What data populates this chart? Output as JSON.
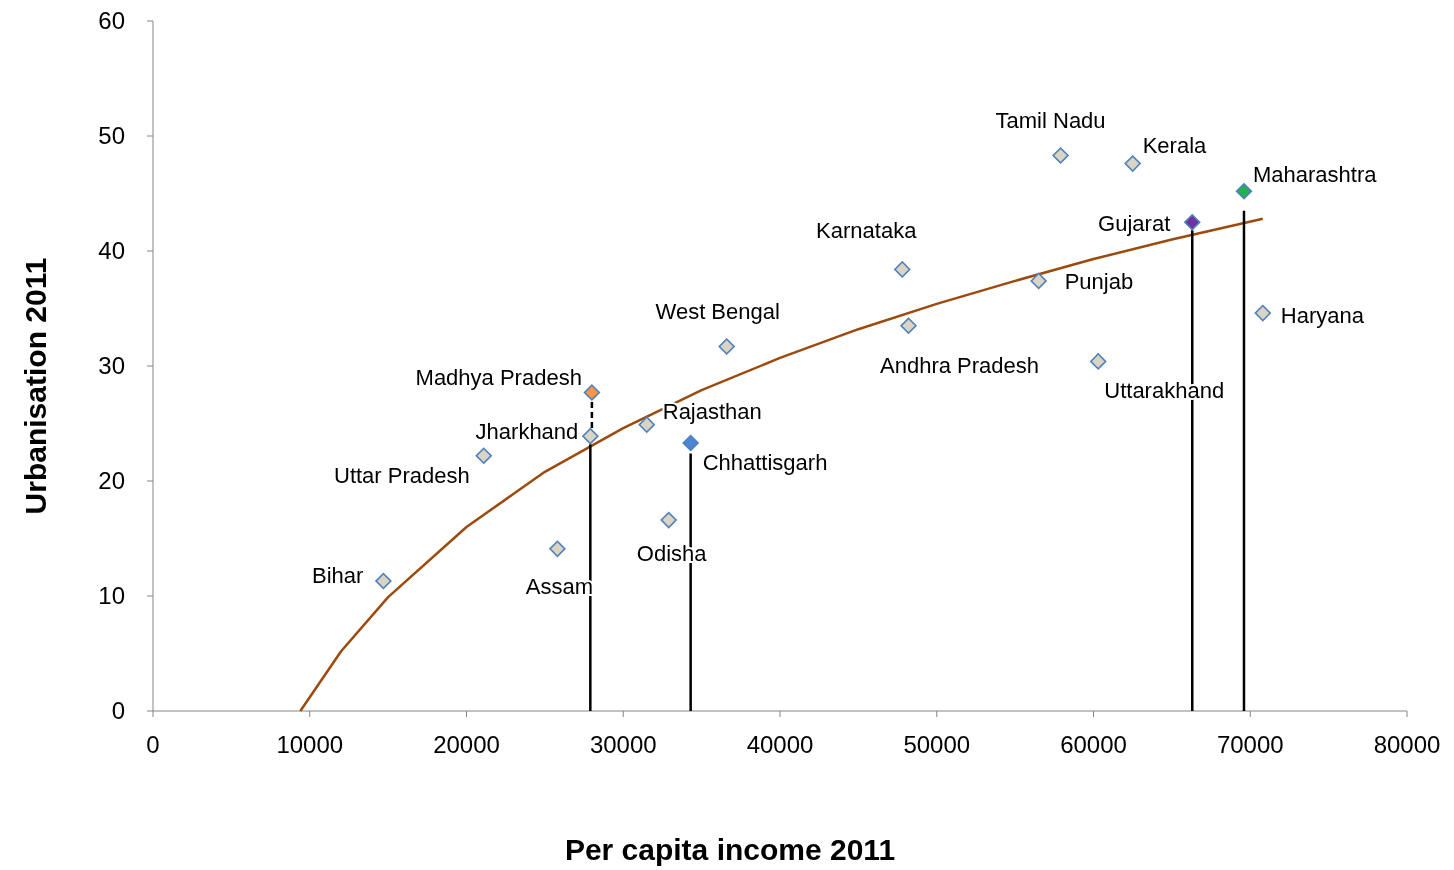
{
  "chart_data": {
    "type": "scatter",
    "xlabel": "Per capita income 2011",
    "ylabel": "Urbanisation 2011",
    "xlim": [
      0,
      80000
    ],
    "xticks": [
      0,
      10000,
      20000,
      30000,
      40000,
      50000,
      60000,
      70000,
      80000
    ],
    "ylim": [
      0,
      60
    ],
    "yticks": [
      0,
      10,
      20,
      30,
      40,
      50,
      60
    ],
    "grid": false,
    "marker": "diamond",
    "series": [
      {
        "type": "line",
        "color": "#9c4a0e",
        "marker": "none",
        "line_style": "solid",
        "x": [
          9400,
          12000,
          15000,
          20000,
          25000,
          30000,
          35000,
          40000,
          45000,
          50000,
          55000,
          60000,
          65000,
          70800
        ],
        "values": [
          0,
          5.2,
          9.9,
          16.0,
          20.8,
          24.6,
          27.9,
          30.7,
          33.2,
          35.4,
          37.4,
          39.3,
          41.0,
          42.8
        ]
      },
      {
        "type": "line",
        "color": "#000000",
        "marker": "none",
        "line_style": "solid",
        "x": [
          27900,
          27900
        ],
        "values": [
          0,
          23.2
        ]
      },
      {
        "type": "line",
        "color": "#000000",
        "marker": "none",
        "line_style": "dashed",
        "x": [
          28000,
          28000
        ],
        "values": [
          24.6,
          27.0
        ]
      },
      {
        "type": "line",
        "color": "#000000",
        "marker": "none",
        "line_style": "solid",
        "x": [
          34300,
          34300
        ],
        "values": [
          0,
          22.4
        ]
      },
      {
        "type": "line",
        "color": "#000000",
        "marker": "none",
        "line_style": "solid",
        "x": [
          66300,
          66300
        ],
        "values": [
          0,
          41.8
        ]
      },
      {
        "type": "line",
        "color": "#000000",
        "marker": "none",
        "line_style": "solid",
        "x": [
          69600,
          69600
        ],
        "values": [
          0,
          43.5
        ]
      },
      {
        "x": [
          14700,
          21100,
          25800,
          27900,
          28000,
          31500,
          34300,
          32900,
          36600,
          47800,
          48200,
          56500,
          57900,
          60300,
          62500,
          66300,
          69600,
          70800
        ],
        "values": [
          11.3,
          22.2,
          14.1,
          23.9,
          27.7,
          24.9,
          23.3,
          16.6,
          31.7,
          38.4,
          33.5,
          37.4,
          48.3,
          30.4,
          47.6,
          42.5,
          45.2,
          34.6
        ],
        "colors": [
          "#d9d4c4",
          "#d9d4c4",
          "#d9d4c4",
          "#d9d4c4",
          "#f79646",
          "#d9d4c4",
          "#4f86d4",
          "#d9d4c4",
          "#d9d4c4",
          "#d9d4c4",
          "#d9d4c4",
          "#d9d4c4",
          "#d9d4c4",
          "#d9d4c4",
          "#d9d4c4",
          "#7030a0",
          "#22b14c",
          "#d9d4c4"
        ]
      }
    ],
    "annotations": [
      {
        "text": "Bihar",
        "x": 14700,
        "y": 11.3
      },
      {
        "text": "Uttar Pradesh",
        "x": 21100,
        "y": 22.2
      },
      {
        "text": "Assam",
        "x": 25800,
        "y": 14.1
      },
      {
        "text": "Jharkhand",
        "x": 27900,
        "y": 23.9
      },
      {
        "text": "Madhya Pradesh",
        "x": 28000,
        "y": 27.7
      },
      {
        "text": "Rajasthan",
        "x": 31500,
        "y": 24.9
      },
      {
        "text": "Chhattisgarh",
        "x": 34300,
        "y": 23.3
      },
      {
        "text": "Odisha",
        "x": 32900,
        "y": 16.6
      },
      {
        "text": "West Bengal",
        "x": 36600,
        "y": 31.7
      },
      {
        "text": "Karnataka",
        "x": 47800,
        "y": 38.4
      },
      {
        "text": "Andhra Pradesh",
        "x": 48200,
        "y": 33.5
      },
      {
        "text": "Punjab",
        "x": 56500,
        "y": 37.4
      },
      {
        "text": "Tamil Nadu",
        "x": 57900,
        "y": 48.3
      },
      {
        "text": "Uttarakhand",
        "x": 60300,
        "y": 30.4
      },
      {
        "text": "Kerala",
        "x": 62500,
        "y": 47.6
      },
      {
        "text": "Gujarat",
        "x": 66300,
        "y": 42.5
      },
      {
        "text": "Maharashtra",
        "x": 69600,
        "y": 45.2
      },
      {
        "text": "Haryana",
        "x": 70800,
        "y": 34.6
      }
    ]
  }
}
